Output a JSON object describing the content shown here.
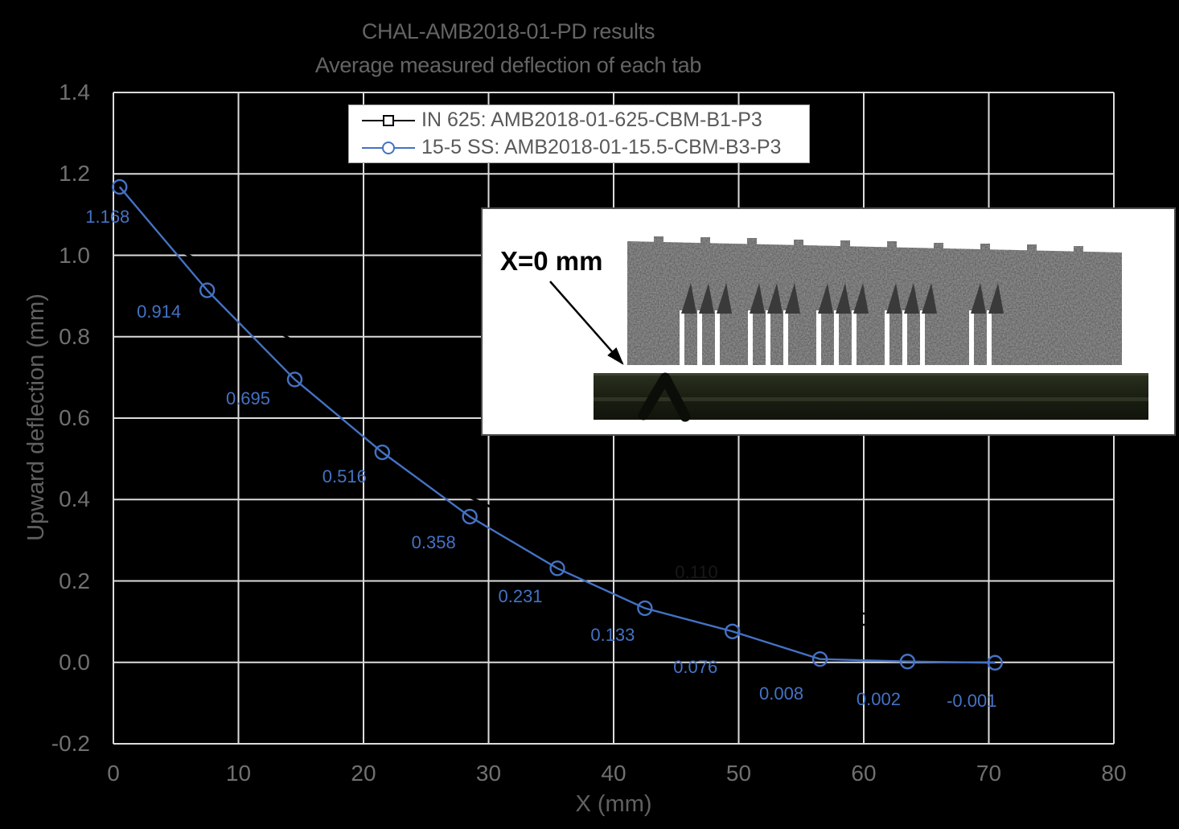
{
  "title": {
    "line1": "CHAL-AMB2018-01-PD results",
    "line2": "Average measured deflection of each tab"
  },
  "axes": {
    "x_label": "X (mm)",
    "y_label": "Upward deflection (mm)"
  },
  "legend": [
    {
      "label": "IN 625: AMB2018-01-625-CBM-B1-P3",
      "marker": "square",
      "color": "#000000"
    },
    {
      "label": "15-5 SS: AMB2018-01-15.5-CBM-B3-P3",
      "marker": "circle",
      "color": "#4472C4"
    }
  ],
  "inset": {
    "annotation": "X=0 mm"
  },
  "chart_data": {
    "type": "line",
    "title": "CHAL-AMB2018-01-PD results",
    "subtitle": "Average measured deflection of each tab",
    "xlabel": "X (mm)",
    "ylabel": "Upward deflection (mm)",
    "xlim": [
      0,
      80
    ],
    "ylim": [
      -0.2,
      1.4
    ],
    "xticks": [
      0,
      10,
      20,
      30,
      40,
      50,
      60,
      70,
      80
    ],
    "xtick_labels": [
      "0",
      "10",
      "20",
      "30",
      "40",
      "50",
      "60",
      "70",
      "80"
    ],
    "yticks": [
      1.4,
      1.2,
      1.0,
      0.8,
      0.6,
      0.4,
      0.2,
      0.0,
      -0.2
    ],
    "ytick_labels": [
      "1.4",
      "1.2",
      "1.0",
      "0.8",
      "0.6",
      "0.4",
      "0.2",
      "0.0",
      "-0.2"
    ],
    "grid": true,
    "legend_position": "top-center",
    "series": [
      {
        "name": "IN 625: AMB2018-01-625-CBM-B1-P3",
        "color": "#000000",
        "marker": "square",
        "note": "drawn in black on black background; only faint artifacts visible where it crosses white gridlines",
        "artifact_label": "0.110"
      },
      {
        "name": "15-5 SS: AMB2018-01-15.5-CBM-B3-P3",
        "color": "#4472C4",
        "marker": "circle",
        "x": [
          0.5,
          7.5,
          14.5,
          21.5,
          28.5,
          35.5,
          42.5,
          49.5,
          56.5,
          63.5,
          70.5
        ],
        "y": [
          1.168,
          0.914,
          0.695,
          0.516,
          0.358,
          0.231,
          0.133,
          0.076,
          0.008,
          0.002,
          -0.001
        ],
        "labels": [
          "1.168",
          "0.914",
          "0.695",
          "0.516",
          "0.358",
          "0.231",
          "0.133",
          "0.076",
          "0.008",
          "0.002",
          "-0.001"
        ]
      }
    ]
  }
}
